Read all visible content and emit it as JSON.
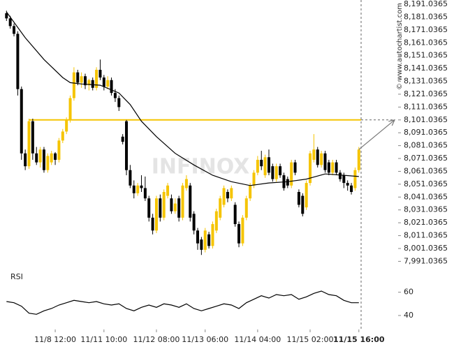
{
  "chart_data": {
    "type": "candlestick",
    "watermark": "INFINOX",
    "copyright": "© www.autochartist.com",
    "up_color": "#f5c400",
    "down_color": "#000000",
    "ohlc": [
      [
        8184,
        8186,
        8178,
        8180
      ],
      [
        8180,
        8182,
        8172,
        8174
      ],
      [
        8174,
        8176,
        8166,
        8168
      ],
      [
        8168,
        8170,
        8120,
        8125
      ],
      [
        8125,
        8127,
        8070,
        8075
      ],
      [
        8075,
        8078,
        8062,
        8065
      ],
      [
        8065,
        8102,
        8063,
        8100
      ],
      [
        8100,
        8102,
        8070,
        8075
      ],
      [
        8075,
        8080,
        8066,
        8068
      ],
      [
        8068,
        8080,
        8064,
        8078
      ],
      [
        8078,
        8080,
        8060,
        8062
      ],
      [
        8062,
        8075,
        8060,
        8073
      ],
      [
        8068,
        8077,
        8066,
        8075
      ],
      [
        8075,
        8076,
        8066,
        8070
      ],
      [
        8070,
        8087,
        8068,
        8085
      ],
      [
        8085,
        8094,
        8083,
        8092
      ],
      [
        8092,
        8103,
        8090,
        8101
      ],
      [
        8101,
        8120,
        8099,
        8118
      ],
      [
        8118,
        8142,
        8116,
        8138
      ],
      [
        8138,
        8140,
        8128,
        8130
      ],
      [
        8130,
        8138,
        8126,
        8135
      ],
      [
        8135,
        8137,
        8125,
        8128
      ],
      [
        8128,
        8133,
        8124,
        8132
      ],
      [
        8132,
        8134,
        8124,
        8126
      ],
      [
        8126,
        8142,
        8124,
        8140
      ],
      [
        8140,
        8148,
        8132,
        8134
      ],
      [
        8134,
        8136,
        8124,
        8127
      ],
      [
        8127,
        8135,
        8125,
        8132
      ],
      [
        8132,
        8134,
        8120,
        8122
      ],
      [
        8122,
        8125,
        8115,
        8118
      ],
      [
        8118,
        8120,
        8108,
        8111
      ],
      [
        8088,
        8090,
        8082,
        8084
      ],
      [
        8100,
        8101,
        8058,
        8062
      ],
      [
        8062,
        8066,
        8048,
        8050
      ],
      [
        8050,
        8054,
        8040,
        8044
      ],
      [
        8044,
        8052,
        8042,
        8050
      ],
      [
        8050,
        8058,
        8045,
        8048
      ],
      [
        8048,
        8057,
        8038,
        8040
      ],
      [
        8040,
        8042,
        8022,
        8025
      ],
      [
        8025,
        8028,
        8012,
        8015
      ],
      [
        8015,
        8042,
        8013,
        8040
      ],
      [
        8040,
        8043,
        8022,
        8025
      ],
      [
        8025,
        8047,
        8023,
        8045
      ],
      [
        8042,
        8052,
        8040,
        8050
      ],
      [
        8040,
        8043,
        8028,
        8030
      ],
      [
        8030,
        8040,
        8028,
        8036
      ],
      [
        8040,
        8042,
        8022,
        8025
      ],
      [
        8025,
        8052,
        8023,
        8050
      ],
      [
        8048,
        8058,
        8046,
        8055
      ],
      [
        8050,
        8052,
        8022,
        8025
      ],
      [
        8028,
        8030,
        8012,
        8015
      ],
      [
        8015,
        8017,
        8000,
        8005
      ],
      [
        8008,
        8010,
        7996,
        8000
      ],
      [
        8000,
        8017,
        7998,
        8015
      ],
      [
        8012,
        8014,
        8001,
        8003
      ],
      [
        8003,
        8022,
        8001,
        8020
      ],
      [
        8015,
        8032,
        8013,
        8030
      ],
      [
        8025,
        8042,
        8023,
        8040
      ],
      [
        8035,
        8050,
        8033,
        8048
      ],
      [
        8045,
        8047,
        8037,
        8040
      ],
      [
        8040,
        8050,
        8038,
        8048
      ],
      [
        8035,
        8037,
        8018,
        8020
      ],
      [
        8020,
        8022,
        8002,
        8005
      ],
      [
        8005,
        8027,
        8003,
        8025
      ],
      [
        8025,
        8042,
        8023,
        8040
      ],
      [
        8040,
        8052,
        8038,
        8050
      ],
      [
        8050,
        8062,
        8048,
        8060
      ],
      [
        8060,
        8073,
        8058,
        8070
      ],
      [
        8070,
        8077,
        8062,
        8065
      ],
      [
        8058,
        8074,
        8056,
        8072
      ],
      [
        8072,
        8078,
        8058,
        8060
      ],
      [
        8065,
        8067,
        8053,
        8055
      ],
      [
        8055,
        8067,
        8053,
        8065
      ],
      [
        8065,
        8067,
        8056,
        8058
      ],
      [
        8058,
        8060,
        8046,
        8048
      ],
      [
        8055,
        8057,
        8048,
        8050
      ],
      [
        8050,
        8070,
        8048,
        8068
      ],
      [
        8068,
        8070,
        8058,
        8060
      ],
      [
        8045,
        8047,
        8033,
        8035
      ],
      [
        8042,
        8044,
        8026,
        8028
      ],
      [
        8033,
        8054,
        8031,
        8052
      ],
      [
        8052,
        8077,
        8050,
        8075
      ],
      [
        8070,
        8090,
        8068,
        8078
      ],
      [
        8078,
        8080,
        8064,
        8066
      ],
      [
        8066,
        8077,
        8064,
        8075
      ],
      [
        8075,
        8077,
        8060,
        8062
      ],
      [
        8068,
        8070,
        8058,
        8060
      ],
      [
        8060,
        8070,
        8058,
        8068
      ],
      [
        8068,
        8070,
        8058,
        8060
      ],
      [
        8060,
        8062,
        8053,
        8055
      ],
      [
        8058,
        8060,
        8048,
        8052
      ],
      [
        8052,
        8054,
        8046,
        8050
      ],
      [
        8050,
        8052,
        8043,
        8045
      ],
      [
        8048,
        8064,
        8046,
        8062
      ],
      [
        8062,
        8080,
        8060,
        8078
      ]
    ],
    "ma": {
      "color": "#000000",
      "x": [
        0,
        5,
        10,
        15,
        17,
        20,
        25,
        30,
        33,
        36,
        40,
        45,
        50,
        55,
        60,
        65,
        70,
        75,
        80,
        85,
        90,
        94
      ],
      "values": [
        8185,
        8165,
        8148,
        8134,
        8130,
        8129,
        8128,
        8122,
        8113,
        8100,
        8088,
        8075,
        8066,
        8058,
        8053,
        8050,
        8052,
        8053,
        8055,
        8059,
        8058,
        8057
      ]
    },
    "level": {
      "value": 8101.0365,
      "start": 6,
      "color": "#f5c400"
    },
    "xlim": [
      -0.8,
      94.6
    ],
    "xticks": [
      {
        "value": 13,
        "label": "11/8 12:00"
      },
      {
        "value": 26,
        "label": "11/11 10:00"
      },
      {
        "value": 40,
        "label": "11/12 08:00"
      },
      {
        "value": 53,
        "label": "11/13 06:00"
      },
      {
        "value": 67,
        "label": "11/14 04:00"
      },
      {
        "value": 81,
        "label": "11/15 02:00"
      },
      {
        "value": 94,
        "label": "11/15 16:00"
      }
    ],
    "ylim": [
      7988,
      8194.3
    ],
    "yticks": [
      {
        "value": 8191.0365,
        "label": "8,191.0365"
      },
      {
        "value": 8181.0365,
        "label": "8,181.0365"
      },
      {
        "value": 8171.0365,
        "label": "8,171.0365"
      },
      {
        "value": 8161.0365,
        "label": "8,161.0365"
      },
      {
        "value": 8151.0365,
        "label": "8,151.0365"
      },
      {
        "value": 8141.0365,
        "label": "8,141.0365"
      },
      {
        "value": 8131.0365,
        "label": "8,131.0365"
      },
      {
        "value": 8121.0365,
        "label": "8,121.0365"
      },
      {
        "value": 8111.0365,
        "label": "8,111.0365"
      },
      {
        "value": 8101.0365,
        "label": "8,101.0365"
      },
      {
        "value": 8091.0365,
        "label": "8,091.0365"
      },
      {
        "value": 8081.0365,
        "label": "8,081.0365"
      },
      {
        "value": 8071.0365,
        "label": "8,071.0365"
      },
      {
        "value": 8061.0365,
        "label": "8,061.0365"
      },
      {
        "value": 8051.0365,
        "label": "8,051.0365"
      },
      {
        "value": 8041.0365,
        "label": "8,041.0365"
      },
      {
        "value": 8031.0365,
        "label": "8,031.0365"
      },
      {
        "value": 8021.0365,
        "label": "8,021.0365"
      },
      {
        "value": 8011.0365,
        "label": "8,011.0365"
      },
      {
        "value": 8001.0365,
        "label": "8,001.0365"
      },
      {
        "value": 7991.0365,
        "label": "7,991.0365"
      }
    ],
    "rsi": {
      "label": "RSI",
      "color": "#000000",
      "x": [
        0,
        2,
        4,
        6,
        8,
        10,
        12,
        14,
        16,
        18,
        20,
        22,
        24,
        26,
        28,
        30,
        32,
        34,
        36,
        38,
        40,
        42,
        44,
        46,
        48,
        50,
        52,
        54,
        56,
        58,
        60,
        62,
        64,
        66,
        68,
        70,
        72,
        74,
        76,
        78,
        80,
        82,
        84,
        86,
        88,
        90,
        92,
        94
      ],
      "values": [
        52,
        51,
        48,
        42,
        41,
        44,
        46,
        49,
        51,
        53,
        52,
        51,
        52,
        50,
        49,
        50,
        46,
        44,
        47,
        49,
        47,
        50,
        49,
        47,
        50,
        46,
        44,
        46,
        48,
        50,
        49,
        46,
        51,
        54,
        57,
        55,
        58,
        57,
        58,
        54,
        56,
        59,
        61,
        58,
        57,
        53,
        51,
        51
      ],
      "ylim": [
        34,
        76
      ],
      "yticks": [
        60,
        40
      ]
    }
  }
}
